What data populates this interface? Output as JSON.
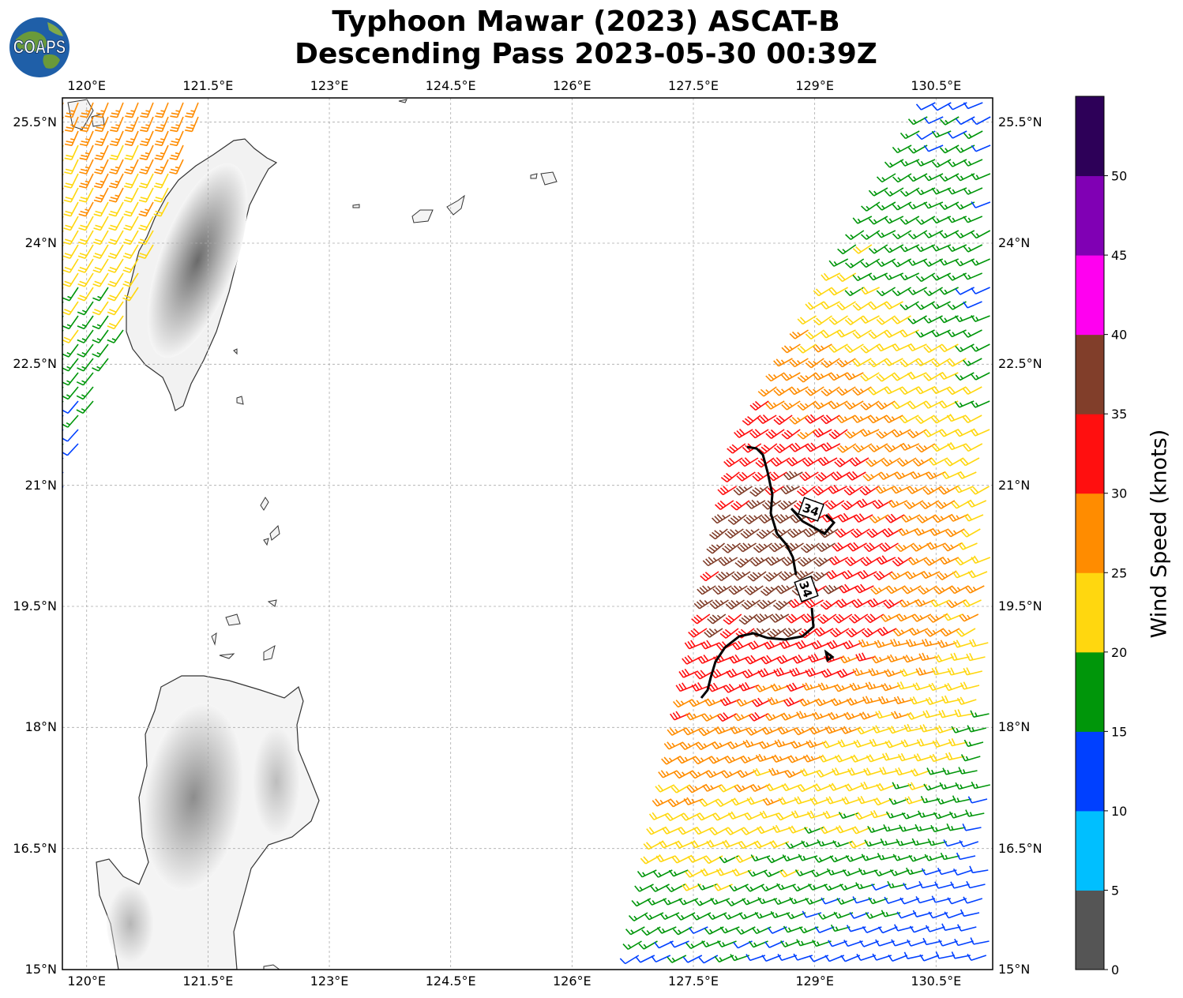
{
  "title": {
    "line1": "Typhoon Mawar (2023) ASCAT-B",
    "line2": "Descending Pass 2023-05-30 00:39Z"
  },
  "logo": {
    "text": "COAPS",
    "icon": "globe-icon"
  },
  "map": {
    "lon_range": [
      119.7,
      131.2
    ],
    "lat_range": [
      15.0,
      25.8
    ],
    "lon_ticks": [
      "120°E",
      "121.5°E",
      "123°E",
      "124.5°E",
      "126°E",
      "127.5°E",
      "129°E",
      "130.5°E"
    ],
    "lon_values": [
      120,
      121.5,
      123,
      124.5,
      126,
      127.5,
      129,
      130.5
    ],
    "lat_ticks": [
      "25.5°N",
      "24°N",
      "22.5°N",
      "21°N",
      "19.5°N",
      "18°N",
      "16.5°N",
      "15°N"
    ],
    "lat_values": [
      25.5,
      24,
      22.5,
      21,
      19.5,
      18,
      16.5,
      15
    ],
    "gridlines": true,
    "land_shading": "terrain-grayscale"
  },
  "contour": {
    "level_labels": [
      "34",
      "34"
    ],
    "color": "#000000"
  },
  "colorbar": {
    "label": "Wind Speed (knots)",
    "tick_labels": [
      "0",
      "5",
      "10",
      "15",
      "20",
      "25",
      "30",
      "35",
      "40",
      "45",
      "50"
    ],
    "bins": [
      {
        "min": 0,
        "max": 5,
        "color": "#555555"
      },
      {
        "min": 5,
        "max": 10,
        "color": "#00bfff"
      },
      {
        "min": 10,
        "max": 15,
        "color": "#0040ff"
      },
      {
        "min": 15,
        "max": 20,
        "color": "#00960a"
      },
      {
        "min": 20,
        "max": 25,
        "color": "#ffd70f"
      },
      {
        "min": 25,
        "max": 30,
        "color": "#ff8c00"
      },
      {
        "min": 30,
        "max": 35,
        "color": "#ff0f0f"
      },
      {
        "min": 35,
        "max": 40,
        "color": "#813e2a"
      },
      {
        "min": 40,
        "max": 45,
        "color": "#ff00f0"
      },
      {
        "min": 45,
        "max": 50,
        "color": "#8000b4"
      },
      {
        "min": 50,
        "max": 55,
        "color": "#2d0058"
      }
    ]
  }
}
